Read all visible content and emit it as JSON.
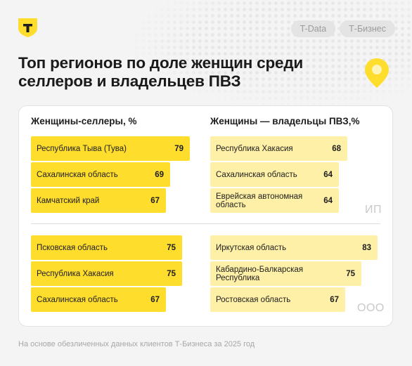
{
  "header": {
    "tags": [
      "T-Data",
      "Т-Бизнес"
    ],
    "title": "Топ регионов по доле женщин среди селлеров и владельцев ПВЗ"
  },
  "colors": {
    "accent": "#ffdd2d",
    "accent_light": "#fff0a8",
    "logo_bg": "#ffdd2d"
  },
  "icons": {
    "logo": "t-bank-shield-icon",
    "pin": "map-pin-icon"
  },
  "chart_data": {
    "type": "bar",
    "orientation": "horizontal",
    "panels": [
      {
        "title": "Женщины-селлеры, %",
        "group": "ИП",
        "categories": [
          "Республика Тыва (Тува)",
          "Сахалинская область",
          "Камчатский край"
        ],
        "values": [
          79,
          69,
          67
        ]
      },
      {
        "title": "Женщины — владельцы ПВЗ,%",
        "group": "ИП",
        "categories": [
          "Республика Хакасия",
          "Сахалинская область",
          "Еврейская автономная область"
        ],
        "values": [
          68,
          64,
          64
        ]
      },
      {
        "title": "Женщины-селлеры, %",
        "group": "ООО",
        "categories": [
          "Псковская область",
          "Республика Хакасия",
          "Сахалинская область"
        ],
        "values": [
          75,
          75,
          67
        ]
      },
      {
        "title": "Женщины — владельцы ПВЗ,%",
        "group": "ООО",
        "categories": [
          "Иркутская область",
          "Кабардино-Балкарская Республика",
          "Ростовская область"
        ],
        "values": [
          83,
          75,
          67
        ]
      }
    ],
    "column_titles": [
      "Женщины-селлеры, %",
      "Женщины — владельцы ПВЗ,%"
    ],
    "row_groups": [
      "ИП",
      "ООО"
    ],
    "grid": false,
    "legend": "none"
  },
  "footnote": "На основе обезличенных данных клиентов Т-Бизнеса за 2025 год"
}
